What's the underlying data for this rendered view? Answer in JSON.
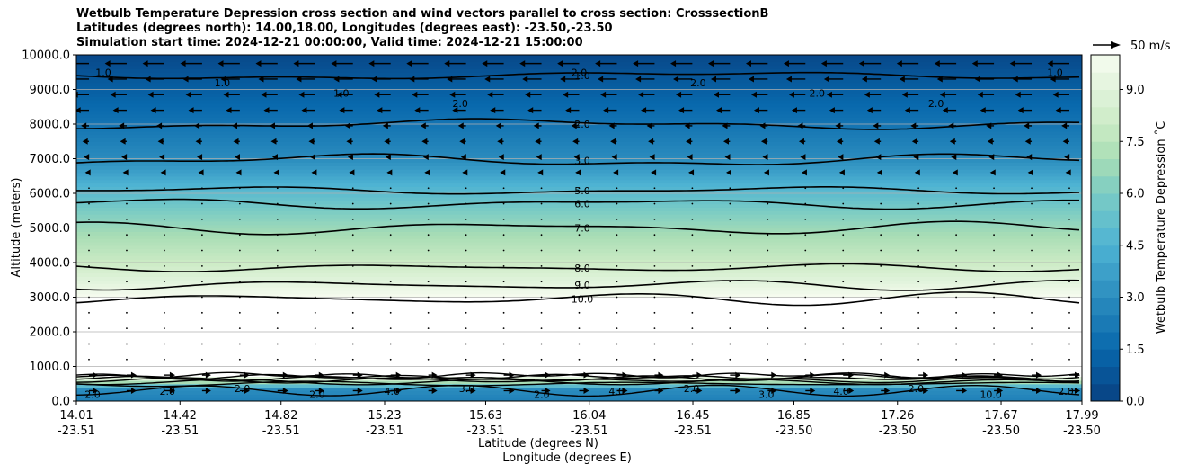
{
  "title_lines": [
    "Wetbulb Temperature Depression cross section and wind vectors parallel to cross section: CrosssectionB",
    "Latitudes (degrees north): 14.00,18.00, Longitudes (degrees east): -23.50,-23.50",
    "Simulation start time: 2024-12-21 00:00:00, Valid time: 2024-12-21 15:00:00"
  ],
  "chart_data": {
    "type": "heatmap",
    "ylabel": "Altitude (meters)",
    "xlabel_lat": "Latitude (degrees N)",
    "xlabel_lon": "Longitude (degrees E)",
    "ylim": [
      0,
      10000
    ],
    "y_ticks": [
      "0.0",
      "1000.0",
      "2000.0",
      "3000.0",
      "4000.0",
      "5000.0",
      "6000.0",
      "7000.0",
      "8000.0",
      "9000.0",
      "10000.0"
    ],
    "x_ticks_lat": [
      "14.01",
      "14.42",
      "14.82",
      "15.23",
      "15.63",
      "16.04",
      "16.45",
      "16.85",
      "17.26",
      "17.67",
      "17.99"
    ],
    "x_ticks_lon": [
      "-23.51",
      "-23.51",
      "-23.51",
      "-23.51",
      "-23.51",
      "-23.51",
      "-23.51",
      "-23.50",
      "-23.50",
      "-23.50",
      "-23.50"
    ],
    "horizontal_grid": true,
    "colorbar": {
      "label": "Wetbulb Temperature Depression ˚C",
      "range": [
        0,
        10
      ],
      "ticks": [
        "0.0",
        "1.5",
        "3.0",
        "4.5",
        "6.0",
        "7.5",
        "9.0"
      ],
      "colormap": "GnBu_r"
    },
    "wind_key": {
      "label": "50 m/s"
    },
    "contour_levels_labeled": [
      {
        "label": "1.0",
        "altitude": 9400
      },
      {
        "label": "2.0",
        "altitude": 8000
      },
      {
        "label": "3.0",
        "altitude": 6950
      },
      {
        "label": "5.0",
        "altitude": 6080
      },
      {
        "label": "6.0",
        "altitude": 5700
      },
      {
        "label": "7.0",
        "altitude": 5000
      },
      {
        "label": "8.0",
        "altitude": 3850
      },
      {
        "label": "9.0",
        "altitude": 3350
      },
      {
        "label": "10.0",
        "altitude": 2950
      }
    ],
    "field_profile": [
      {
        "altitude": 0,
        "value": 2.5
      },
      {
        "altitude": 350,
        "value": 3.0
      },
      {
        "altitude": 700,
        "value": 10.0
      },
      {
        "altitude": 3000,
        "value": 10.0
      },
      {
        "altitude": 3500,
        "value": 9.0
      },
      {
        "altitude": 4000,
        "value": 8.0
      },
      {
        "altitude": 4800,
        "value": 7.0
      },
      {
        "altitude": 5500,
        "value": 6.0
      },
      {
        "altitude": 6000,
        "value": 5.0
      },
      {
        "altitude": 6500,
        "value": 4.0
      },
      {
        "altitude": 7000,
        "value": 3.0
      },
      {
        "altitude": 8000,
        "value": 2.0
      },
      {
        "altitude": 9200,
        "value": 1.0
      },
      {
        "altitude": 10000,
        "value": 0.3
      }
    ],
    "lower_contour_labels": [
      "2.0",
      "2.0",
      "2.0",
      "2.0",
      "4.0",
      "3.0",
      "2.0",
      "4.0",
      "2.0",
      "3.0",
      "4.0",
      "2.0",
      "10.0",
      "2.0"
    ],
    "upper_contour_labels": [
      "1.0",
      "1.0",
      "1.0",
      "2.0",
      "2.0",
      "2.0",
      "2.0",
      "2.0",
      "1.0"
    ]
  },
  "colors": {
    "grid": "#b0b0b0",
    "contour": "#000000",
    "arrow": "#000000"
  }
}
